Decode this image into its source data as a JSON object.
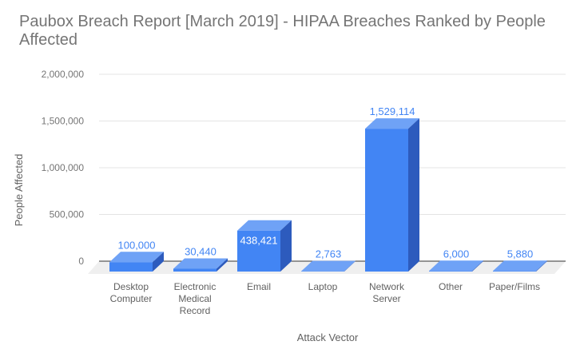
{
  "title": "Paubox Breach Report [March 2019] - HIPAA Breaches Ranked by People Affected",
  "chart_data": {
    "type": "bar",
    "style": "3d-column",
    "title": "Paubox Breach Report [March 2019] - HIPAA Breaches Ranked by People Affected",
    "xlabel": "Attack Vector",
    "ylabel": "People Affected",
    "categories": [
      "Desktop Computer",
      "Electronic Medical Record",
      "Email",
      "Laptop",
      "Network Server",
      "Other",
      "Paper/Films"
    ],
    "values": [
      100000,
      30440,
      438421,
      2763,
      1529114,
      6000,
      5880
    ],
    "value_labels": [
      "100,000",
      "30,440",
      "438,421",
      "2,763",
      "1,529,114",
      "6,000",
      "5,880"
    ],
    "annotation_inside_index": 2,
    "ylim": [
      0,
      2000000
    ],
    "yticks": [
      0,
      500000,
      1000000,
      1500000,
      2000000
    ],
    "ytick_labels": [
      "0",
      "500,000",
      "1,000,000",
      "1,500,000",
      "2,000,000"
    ],
    "grid": true,
    "legend": "none",
    "colors": {
      "bar_front": "#4285f4",
      "bar_top": "#6fa2f6",
      "bar_side": "#2d5bbd",
      "annotation": "#4285f4",
      "annotation_inside": "#ffffff",
      "gridline": "#e4e4e4",
      "baseline": "#333333",
      "floor": "#efefef",
      "title_text": "#757575",
      "ytick_text": "#757575",
      "category_text": "#616161",
      "axis_title_text": "#616161",
      "background": "#ffffff"
    }
  }
}
